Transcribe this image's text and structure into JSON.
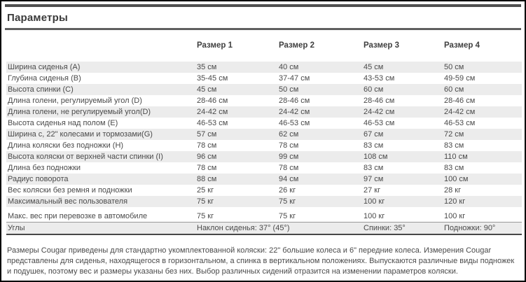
{
  "page": {
    "title": "Параметры"
  },
  "table": {
    "column_headers": [
      "Размер 1",
      "Размер 2",
      "Размер 3",
      "Размер 4"
    ],
    "rows": [
      {
        "label": "Ширина сиденья (A)",
        "values": [
          "35 см",
          "40 см",
          "45 см",
          "50 см"
        ]
      },
      {
        "label": "Глубина сиденья (B)",
        "values": [
          "35-45 см",
          "37-47 см",
          "43-53 см",
          "49-59 см"
        ]
      },
      {
        "label": "Высота спинки (C)",
        "values": [
          "45 см",
          "50 см",
          "60 см",
          "60 см"
        ]
      },
      {
        "label": "Длина голени, регулируемый угол (D)",
        "values": [
          "28-46 см",
          "28-46 см",
          "28-46 см",
          "28-46 см"
        ]
      },
      {
        "label": "Длина голени, не регулируемый угол(D)",
        "values": [
          "24-42 см",
          "24-42 см",
          "24-42 см",
          "24-42 см"
        ]
      },
      {
        "label": "Высота сиденья над полом (E)",
        "values": [
          "46-53 см",
          "46-53 см",
          "46-53 см",
          "46-53 см"
        ]
      },
      {
        "label": "Ширина с, 22\" колесами и тормозами(G)",
        "values": [
          "57 см",
          "62 см",
          "67 см",
          "72 см"
        ]
      },
      {
        "label": "Длина коляски без подножки (H)",
        "values": [
          "78 см",
          "78 см",
          "83 см",
          "83 см"
        ]
      },
      {
        "label": "Высота коляски от верхней части спинки (I)",
        "values": [
          "96 см",
          "99 см",
          "108 см",
          "110 см"
        ]
      },
      {
        "label": "Длина без подножки",
        "values": [
          "78 см",
          "78 см",
          "83 см",
          "83 см"
        ]
      },
      {
        "label": "Радиус поворота",
        "values": [
          "88 см",
          "94 см",
          "97 см",
          "100 см"
        ]
      },
      {
        "label": "Вес коляски без ремня и подножки",
        "values": [
          "25 кг",
          "26 кг",
          "27 кг",
          "28 кг"
        ]
      },
      {
        "label": "Максимальный вес пользователя",
        "values": [
          "75 кг",
          "75 кг",
          "100 кг",
          "120 кг"
        ]
      },
      {
        "label": "Макс. вес при перевозке в автомобиле",
        "values": [
          "75 кг",
          "75 кг",
          "100 кг",
          "100 кг"
        ]
      }
    ],
    "angles_row": {
      "label": "Углы",
      "seat_tilt": "Наклон сиденья: 37° (45°)",
      "back": "Спинки: 35°",
      "footrest": "Подножки: 90°"
    }
  },
  "footer": {
    "note": "Размеры Cougar приведены для стандартно укомплектованной коляски: 22\" большие колеса и 6\" передние колеса. Измерения Cougar представлены для сиденья, находящегося в горизонтальном, а спинка в вертикальном положениях. Выпускаются различные виды подножек и подушек, поэтому вес и размеры указаны без них. Выбор различных сидений отразится на изменении параметров коляски."
  },
  "colors": {
    "stripe": "#ececec",
    "rule": "#5f5f5f",
    "text": "#4a4a4a",
    "frame": "#000000"
  }
}
